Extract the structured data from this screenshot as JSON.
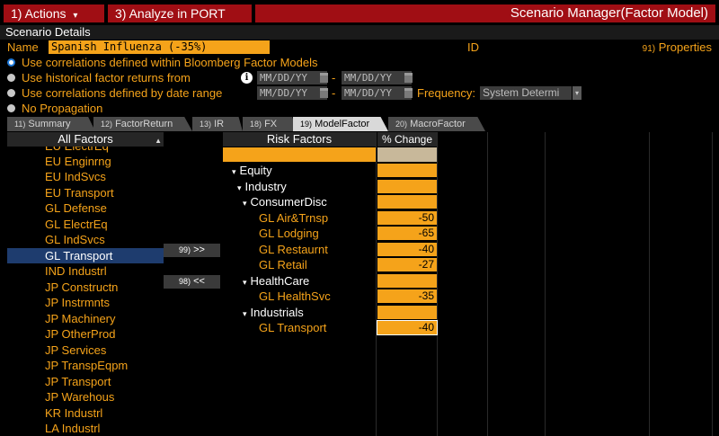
{
  "toolbar": {
    "actions_num": "1)",
    "actions_label": "Actions",
    "actions_caret": "▾",
    "analyze_num": "3)",
    "analyze_label": "Analyze in PORT",
    "title": "Scenario Manager(Factor Model)"
  },
  "details": {
    "header": "Scenario Details",
    "name_label": "Name",
    "name_value": "Spanish Influenza (-35%)",
    "id_label": "ID",
    "properties_num": "91)",
    "properties_label": "Properties"
  },
  "options": {
    "opt1": "Use correlations defined within Bloomberg Factor Models",
    "opt2": "Use historical factor returns from",
    "opt3": "Use correlations defined by date range",
    "opt4": "No Propagation",
    "info_icon": "i",
    "date_placeholder": "MM/DD/YY",
    "dash": "-",
    "frequency_label": "Frequency:",
    "frequency_value": "System Determi",
    "frequency_arrow": "▾"
  },
  "tabs": [
    {
      "num": "11)",
      "label": "Summary"
    },
    {
      "num": "12)",
      "label": "FactorReturn"
    },
    {
      "num": "13)",
      "label": "IR"
    },
    {
      "num": "18)",
      "label": "FX"
    },
    {
      "num": "19)",
      "label": "ModelFactor"
    },
    {
      "num": "20)",
      "label": "MacroFactor"
    }
  ],
  "all_factors": {
    "header": "All Factors",
    "scroll_icon": "▲",
    "items": [
      "EU ElectrEq",
      "EU Enginrng",
      "EU IndSvcs",
      "EU Transport",
      "GL Defense",
      "GL ElectrEq",
      "GL IndSvcs",
      "GL Transport",
      "IND Industrl",
      "JP Constructn",
      "JP Instrmnts",
      "JP Machinery",
      "JP OtherProd",
      "JP Services",
      "JP TranspEqpm",
      "JP Transport",
      "JP Warehous",
      "KR Industrl",
      "LA Industrl"
    ]
  },
  "move_buttons": {
    "add_num": "99)",
    "add_label": ">>",
    "remove_num": "98)",
    "remove_label": "<<"
  },
  "risk": {
    "header": "Risk Factors",
    "pct_header": "% Change",
    "caret": "▾",
    "equity": "Equity",
    "industry": "Industry",
    "consumer": "ConsumerDisc",
    "air": "GL Air&Trnsp",
    "air_val": "-50",
    "lodging": "GL Lodging",
    "lodging_val": "-65",
    "restaurant": "GL Restaurnt",
    "restaurant_val": "-40",
    "retail": "GL Retail",
    "retail_val": "-27",
    "healthcare": "HealthCare",
    "healthsvc": "GL HealthSvc",
    "healthsvc_val": "-35",
    "industrials": "Industrials",
    "transport": "GL Transport",
    "transport_val": "-40"
  }
}
